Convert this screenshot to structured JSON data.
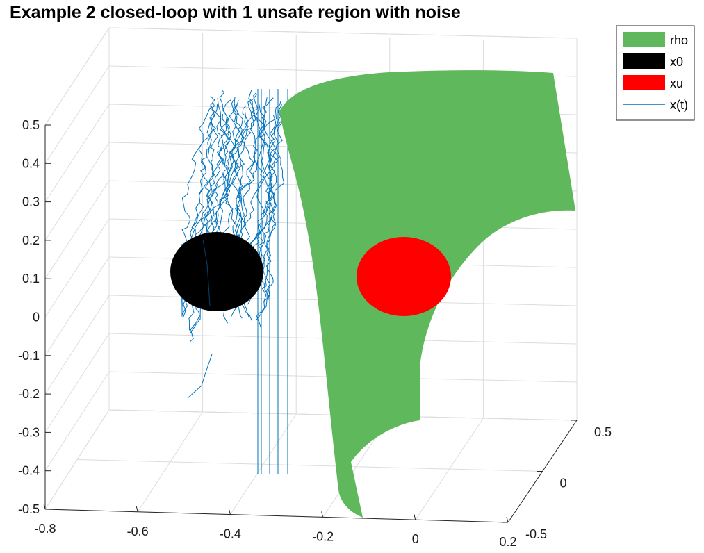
{
  "chart_data": {
    "type": "3d-surface",
    "title": "Example 2 closed-loop with 1 unsafe region with noise",
    "xlabel": "",
    "ylabel": "",
    "zlabel": "",
    "x_ticks": [
      "-0.8",
      "-0.6",
      "-0.4",
      "-0.2",
      "0",
      "0.2"
    ],
    "y_ticks": [
      "-0.5",
      "0",
      "0.5"
    ],
    "z_ticks": [
      "0.5",
      "0.4",
      "0.3",
      "0.2",
      "0.1",
      "0",
      "-0.1",
      "-0.2",
      "-0.3",
      "-0.4",
      "-0.5"
    ],
    "xlim": [
      -0.8,
      0.2
    ],
    "ylim": [
      -0.5,
      0.5
    ],
    "zlim": [
      -0.5,
      0.5
    ],
    "grid": true,
    "legend": {
      "placement": "top-right",
      "entries": [
        {
          "label": "rho",
          "color": "#5fb85c",
          "kind": "patch"
        },
        {
          "label": "x0",
          "color": "#000000",
          "kind": "patch"
        },
        {
          "label": "xu",
          "color": "#ff0000",
          "kind": "patch"
        },
        {
          "label": "x(t)",
          "color": "#0072bd",
          "kind": "line"
        }
      ]
    },
    "series": [
      {
        "name": "rho",
        "kind": "surface",
        "color": "#5fb85c"
      },
      {
        "name": "x0",
        "kind": "disk",
        "color": "#000000",
        "center": [
          -0.55,
          0,
          0.1
        ]
      },
      {
        "name": "xu",
        "kind": "disk",
        "color": "#ff0000",
        "center": [
          0,
          0,
          0.1
        ]
      },
      {
        "name": "x(t)",
        "kind": "trajectories",
        "color": "#0072bd",
        "count": 30
      }
    ]
  }
}
